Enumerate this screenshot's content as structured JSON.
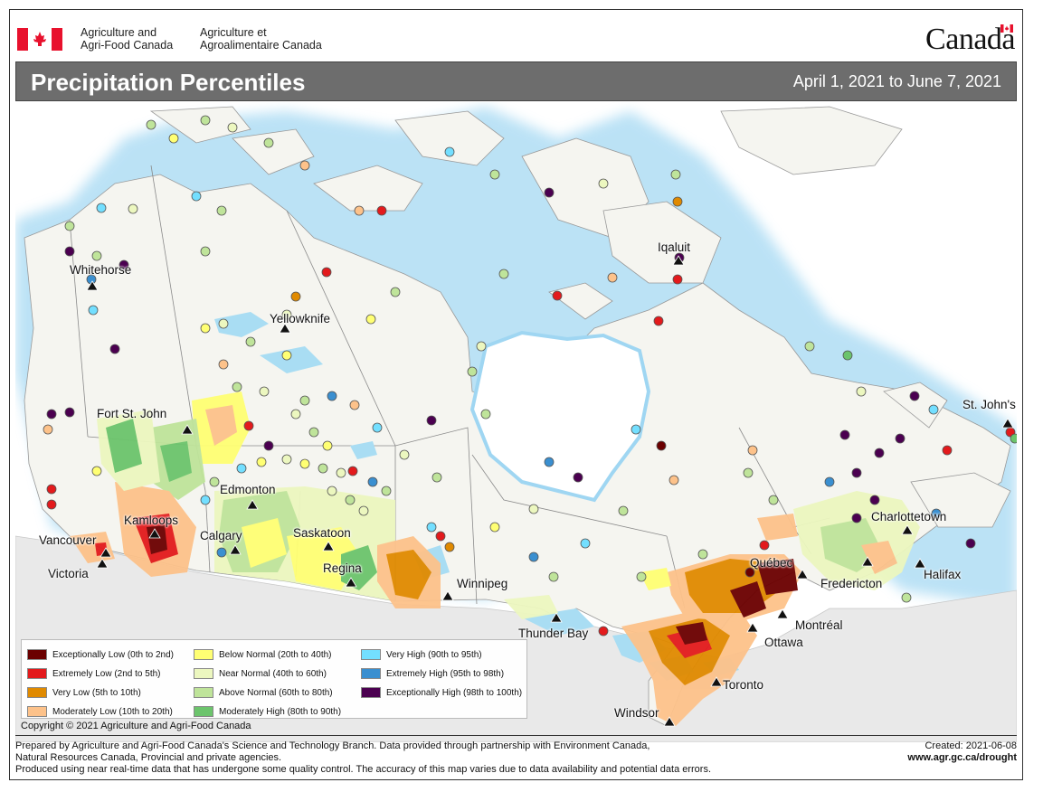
{
  "header": {
    "dept_en_line1": "Agriculture and",
    "dept_en_line2": "Agri-Food Canada",
    "dept_fr_line1": "Agriculture et",
    "dept_fr_line2": "Agroalimentaire Canada",
    "wordmark": "Canada"
  },
  "titlebar": {
    "title": "Precipitation Percentiles",
    "date_range": "April 1, 2021 to June 7, 2021"
  },
  "cities": [
    {
      "name": "Whitehorse"
    },
    {
      "name": "Yellowknife"
    },
    {
      "name": "Iqaluit"
    },
    {
      "name": "Fort St. John"
    },
    {
      "name": "Edmonton"
    },
    {
      "name": "Kamloops"
    },
    {
      "name": "Calgary"
    },
    {
      "name": "Saskatoon"
    },
    {
      "name": "Vancouver"
    },
    {
      "name": "Victoria"
    },
    {
      "name": "Regina"
    },
    {
      "name": "Winnipeg"
    },
    {
      "name": "Thunder Bay"
    },
    {
      "name": "Windsor"
    },
    {
      "name": "Toronto"
    },
    {
      "name": "Ottawa"
    },
    {
      "name": "Montréal"
    },
    {
      "name": "Québec"
    },
    {
      "name": "Fredericton"
    },
    {
      "name": "Halifax"
    },
    {
      "name": "Charlottetown"
    },
    {
      "name": "St. John's"
    }
  ],
  "legend": [
    {
      "label": "Exceptionally Low (0th to 2nd)",
      "color": "#6b0000"
    },
    {
      "label": "Extremely Low (2nd to 5th)",
      "color": "#e31a1c"
    },
    {
      "label": "Very Low (5th to 10th)",
      "color": "#e08a00"
    },
    {
      "label": "Moderately Low (10th to 20th)",
      "color": "#fdc28a"
    },
    {
      "label": "Below Normal (20th to 40th)",
      "color": "#ffff73"
    },
    {
      "label": "Near Normal (40th to 60th)",
      "color": "#ecf7bf"
    },
    {
      "label": "Above Normal (60th to 80th)",
      "color": "#bfe49a"
    },
    {
      "label": "Moderately High (80th to 90th)",
      "color": "#6cc46c"
    },
    {
      "label": "Very High (90th to 95th)",
      "color": "#73dfff"
    },
    {
      "label": "Extremely High (95th to 98th)",
      "color": "#3a8fd0"
    },
    {
      "label": "Exceptionally High (98th to 100th)",
      "color": "#4b0050"
    }
  ],
  "copyright": "Copyright © 2021 Agriculture and Agri-Food Canada",
  "footer": {
    "line1": "Prepared by Agriculture and Agri-Food Canada's Science and Technology Branch. Data provided through partnership with Environment Canada,",
    "line2": "Natural Resources Canada, Provincial and private agencies.",
    "line3": "Produced using near real-time data that has undergone some quality control. The accuracy of this map varies due to data availability and potential data errors.",
    "created": "Created: 2021-06-08",
    "url": "www.agr.gc.ca/drought"
  }
}
